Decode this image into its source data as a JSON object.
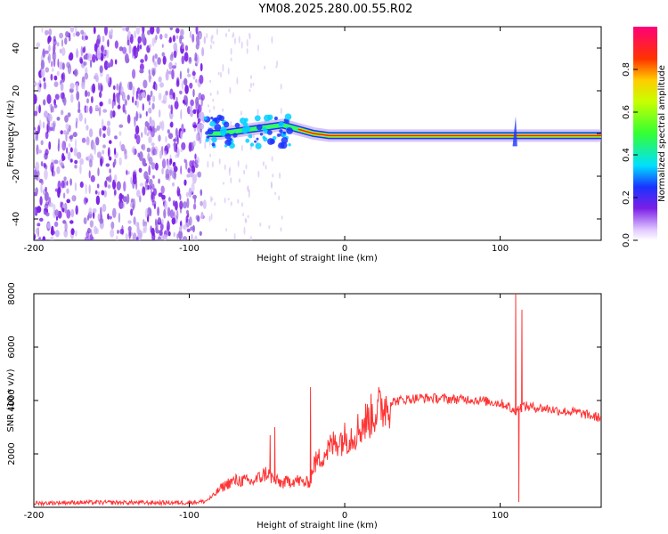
{
  "title": "YM08.2025.280.00.55.R02",
  "colors": {
    "spectrogram_weak": "#9a6be0",
    "spectrogram_strong": "#7a1fe6",
    "snr_line": "#ff3333",
    "axis": "#000000"
  },
  "chart_data": [
    {
      "type": "heatmap",
      "name": "spectrogram",
      "xlabel": "Height of straight line (km)",
      "ylabel": "Frequency (Hz)",
      "xlim": [
        -200,
        165
      ],
      "ylim": [
        -50,
        50
      ],
      "xticks": [
        -200,
        -100,
        0,
        100
      ],
      "yticks": [
        -40,
        -20,
        0,
        20,
        40
      ],
      "xtick_labels": [
        "-200",
        "-100",
        "0",
        "100"
      ],
      "ytick_labels": [
        "-40",
        "-20",
        "0",
        "20",
        "40"
      ],
      "noise_region_x": [
        -200,
        -90
      ],
      "ridge": [
        {
          "x": -88,
          "f": 0
        },
        {
          "x": -80,
          "f": 0
        },
        {
          "x": -70,
          "f": 1
        },
        {
          "x": -60,
          "f": 2
        },
        {
          "x": -50,
          "f": 3
        },
        {
          "x": -40,
          "f": 4
        },
        {
          "x": -35,
          "f": 3
        },
        {
          "x": -30,
          "f": 2
        },
        {
          "x": -20,
          "f": 0
        },
        {
          "x": -10,
          "f": -1
        },
        {
          "x": 0,
          "f": -1
        },
        {
          "x": 20,
          "f": -1
        },
        {
          "x": 50,
          "f": -1
        },
        {
          "x": 90,
          "f": -1
        },
        {
          "x": 105,
          "f": -1
        },
        {
          "x": 110,
          "f": -1
        },
        {
          "x": 140,
          "f": -1
        },
        {
          "x": 165,
          "f": -1
        }
      ],
      "colorbar": {
        "label": "Normalized spectral amplitude",
        "range": [
          0,
          1
        ],
        "ticks": [
          0.0,
          0.2,
          0.4,
          0.6,
          0.8
        ],
        "tick_labels": [
          "0.0",
          "0.2",
          "0.4",
          "0.6",
          "0.8"
        ]
      }
    },
    {
      "type": "line",
      "name": "snr",
      "xlabel": "Height of straight line (km)",
      "ylabel": "SNR (10 * v/v)",
      "xlim": [
        -200,
        165
      ],
      "ylim": [
        0,
        8000
      ],
      "xticks": [
        -200,
        -100,
        0,
        100
      ],
      "yticks": [
        2000,
        4000,
        6000,
        8000
      ],
      "xtick_labels": [
        "-200",
        "-100",
        "0",
        "100"
      ],
      "ytick_labels": [
        "2000",
        "4000",
        "6000",
        "8000"
      ],
      "series": [
        {
          "name": "SNR",
          "points": [
            [
              -200,
              150
            ],
            [
              -180,
              180
            ],
            [
              -160,
              180
            ],
            [
              -140,
              180
            ],
            [
              -120,
              170
            ],
            [
              -100,
              180
            ],
            [
              -90,
              220
            ],
            [
              -85,
              400
            ],
            [
              -80,
              700
            ],
            [
              -75,
              900
            ],
            [
              -70,
              1000
            ],
            [
              -65,
              1000
            ],
            [
              -60,
              950
            ],
            [
              -55,
              1100
            ],
            [
              -50,
              1300
            ],
            [
              -45,
              1000
            ],
            [
              -40,
              900
            ],
            [
              -35,
              1000
            ],
            [
              -30,
              1000
            ],
            [
              -25,
              900
            ],
            [
              -22,
              1000
            ],
            [
              -20,
              1600
            ],
            [
              -15,
              1900
            ],
            [
              -10,
              2200
            ],
            [
              -5,
              2500
            ],
            [
              0,
              2600
            ],
            [
              5,
              2700
            ],
            [
              10,
              3000
            ],
            [
              15,
              3300
            ],
            [
              20,
              3600
            ],
            [
              25,
              3800
            ],
            [
              30,
              3950
            ],
            [
              40,
              4050
            ],
            [
              50,
              4100
            ],
            [
              60,
              4080
            ],
            [
              70,
              4050
            ],
            [
              80,
              4050
            ],
            [
              90,
              3980
            ],
            [
              100,
              3900
            ],
            [
              105,
              3800
            ],
            [
              108,
              3600
            ],
            [
              112,
              3700
            ],
            [
              115,
              3800
            ],
            [
              120,
              3750
            ],
            [
              130,
              3700
            ],
            [
              140,
              3600
            ],
            [
              150,
              3550
            ],
            [
              160,
              3400
            ],
            [
              165,
              3350
            ]
          ],
          "spikes": [
            {
              "x": -48,
              "y": 2700
            },
            {
              "x": -45,
              "y": 3000
            },
            {
              "x": -22,
              "y": 4500
            },
            {
              "x": 110,
              "y": 8000
            },
            {
              "x": 112,
              "y": 200
            },
            {
              "x": 114,
              "y": 7400
            }
          ]
        }
      ]
    }
  ]
}
